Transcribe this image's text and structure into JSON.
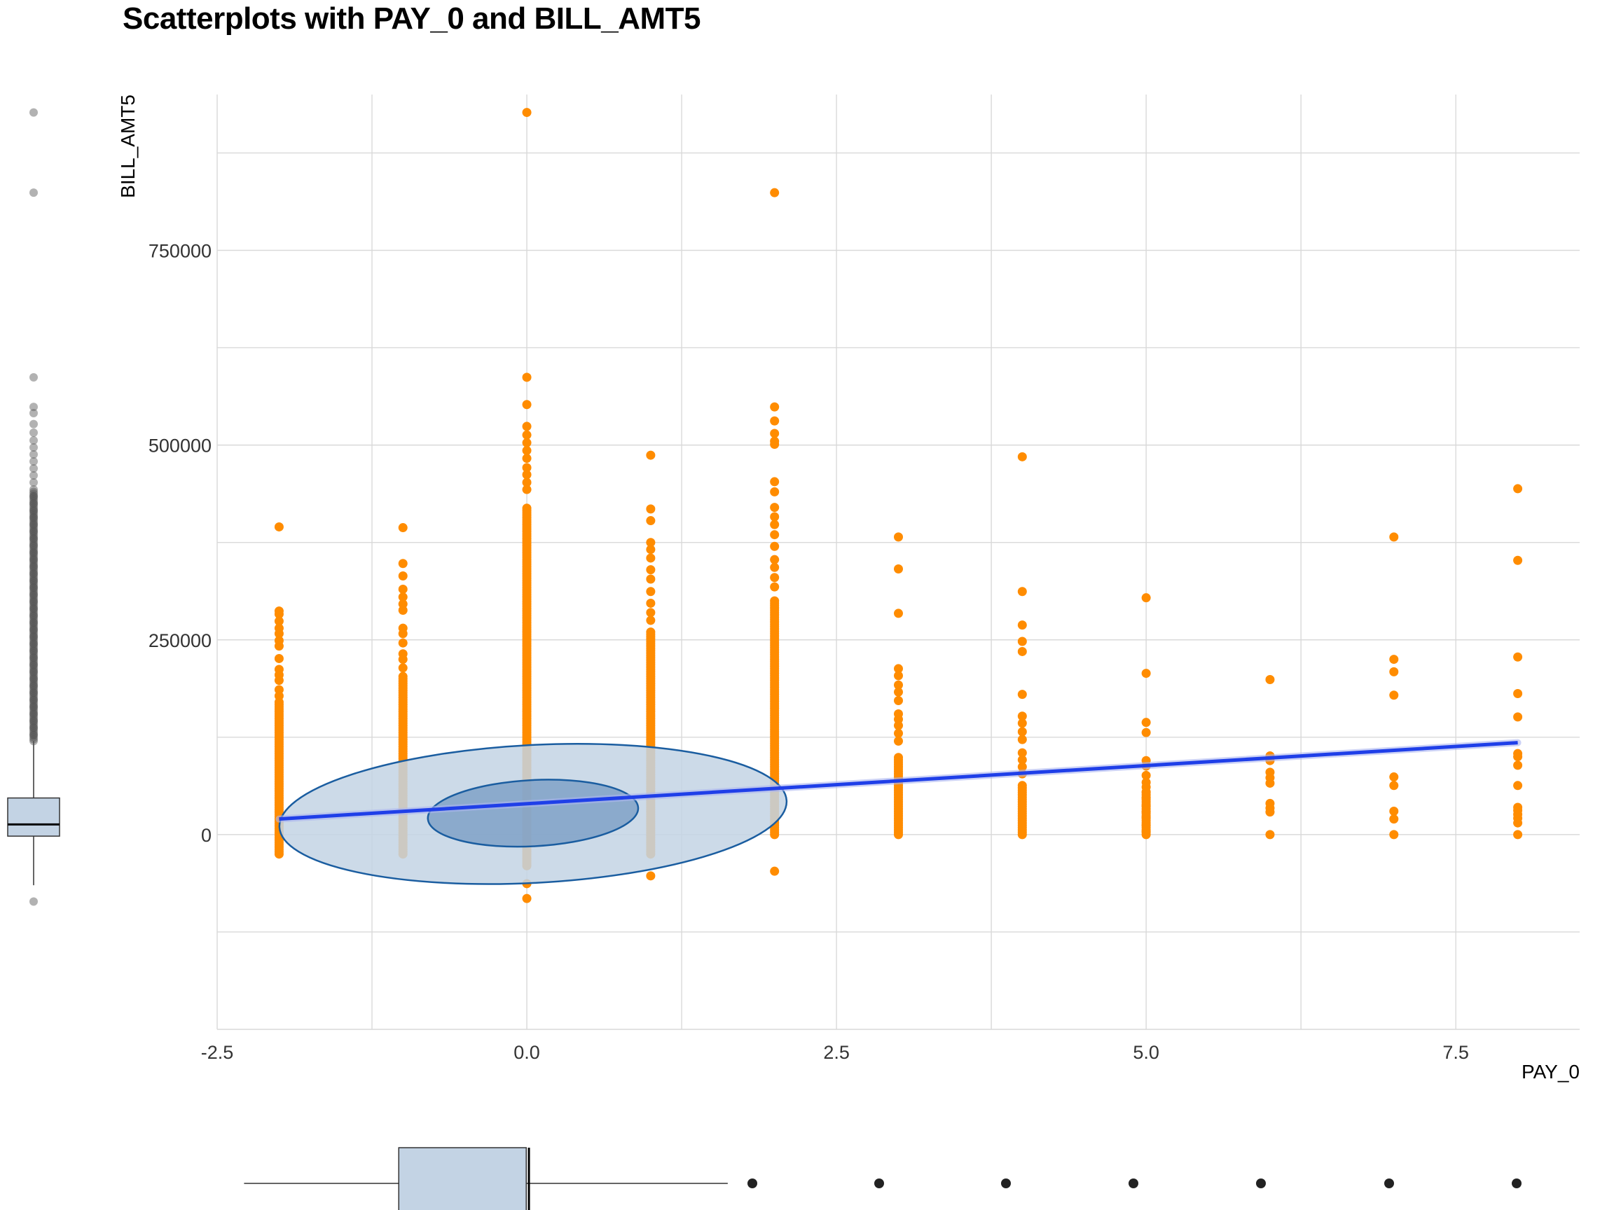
{
  "chart_data": {
    "type": "scatter",
    "title": "Scatterplots with PAY_0 and BILL_AMT5",
    "xlabel": "PAY_0",
    "ylabel": "BILL_AMT5",
    "xlim": [
      -2.5,
      8.5
    ],
    "ylim": [
      -250000,
      950000
    ],
    "x_ticks": [
      {
        "value": -2.5,
        "label": "-2.5"
      },
      {
        "value": 0.0,
        "label": "0.0"
      },
      {
        "value": 2.5,
        "label": "2.5"
      },
      {
        "value": 5.0,
        "label": "5.0"
      },
      {
        "value": 7.5,
        "label": "7.5"
      }
    ],
    "y_ticks": [
      {
        "value": 0,
        "label": "0"
      },
      {
        "value": 250000,
        "label": "250000"
      },
      {
        "value": 500000,
        "label": "500000"
      },
      {
        "value": 750000,
        "label": "750000"
      }
    ],
    "grid": true,
    "point_color": "#ff8c00",
    "columns": [
      {
        "x": -2,
        "dense_range": [
          -25000,
          170000
        ],
        "points": [
          395000,
          287000,
          283000,
          274000,
          265000,
          258000,
          249000,
          242000,
          226000,
          212000,
          205000,
          198000,
          186000,
          178000
        ]
      },
      {
        "x": -1,
        "dense_range": [
          -25000,
          205000
        ],
        "points": [
          394000,
          348000,
          332000,
          315000,
          305000,
          296000,
          288000,
          265000,
          258000,
          246000,
          232000,
          225000,
          214000
        ]
      },
      {
        "x": 0,
        "dense_range": [
          -40000,
          420000
        ],
        "points": [
          927000,
          587000,
          552000,
          524000,
          513000,
          503000,
          493000,
          483000,
          471000,
          462000,
          452000,
          443000,
          -63000,
          -82000
        ]
      },
      {
        "x": 1,
        "dense_range": [
          -25000,
          260000
        ],
        "points": [
          487000,
          418000,
          403000,
          375000,
          366000,
          355000,
          340000,
          328000,
          312000,
          297000,
          285000,
          275000,
          -53000
        ]
      },
      {
        "x": 2,
        "dense_range": [
          0,
          300000
        ],
        "points": [
          824000,
          549000,
          531000,
          515000,
          505000,
          501000,
          453000,
          440000,
          420000,
          408000,
          398000,
          385000,
          370000,
          353000,
          343000,
          330000,
          318000,
          -47000
        ]
      },
      {
        "x": 3,
        "dense_range": [
          0,
          100000
        ],
        "points": [
          382000,
          341000,
          284000,
          213000,
          204000,
          192000,
          183000,
          172000,
          155000,
          148000,
          140000,
          130000,
          120000
        ]
      },
      {
        "x": 4,
        "dense_range": [
          0,
          65000
        ],
        "points": [
          485000,
          312000,
          269000,
          248000,
          235000,
          180000,
          152000,
          143000,
          132000,
          122000,
          105000,
          96000,
          87000,
          78000
        ]
      },
      {
        "x": 5,
        "dense_range": [
          0,
          55000
        ],
        "points": [
          304000,
          207000,
          144000,
          131000,
          95000,
          88000,
          76000,
          67000,
          61000,
          55000,
          47000,
          37000,
          29000,
          22000,
          12000,
          4000
        ]
      },
      {
        "x": 6,
        "dense_range": [
          0,
          0
        ],
        "points": [
          199000,
          101000,
          95000,
          80000,
          73000,
          66000,
          40000,
          34000,
          29000
        ]
      },
      {
        "x": 7,
        "dense_range": [
          0,
          0
        ],
        "points": [
          382000,
          225000,
          209000,
          179000,
          74000,
          63000,
          30000,
          20000
        ]
      },
      {
        "x": 8,
        "dense_range": [
          0,
          0
        ],
        "points": [
          444000,
          352000,
          228000,
          181000,
          151000,
          104000,
          100000,
          89000,
          63000,
          35000,
          31000,
          26000,
          21000,
          15000
        ]
      }
    ],
    "regression_line": {
      "color": "#1f3fe8",
      "x": [
        -2,
        8
      ],
      "y": [
        20000,
        118000
      ]
    },
    "ellipses": [
      {
        "level": "outer",
        "fill": "#c3d3e4",
        "stroke": "#1a5da0",
        "x_range": [
          -2,
          2.1
        ],
        "y_range": [
          -62000,
          115000
        ]
      },
      {
        "level": "inner",
        "fill": "#7b9dc4",
        "stroke": "#1a5da0",
        "x_range": [
          -0.8,
          0.9
        ],
        "y_range": [
          -15000,
          70000
        ]
      }
    ],
    "y_marginal_boxplot": {
      "fill": "#c3d3e4",
      "stroke": "#333333",
      "whisker_low": -65000,
      "q1": -2000,
      "median": 13000,
      "q3": 47000,
      "whisker_high": 120000,
      "outliers": [
        927000,
        824000,
        587000,
        549000,
        541000,
        527000,
        516000,
        506000,
        497000,
        488000,
        479000,
        470000,
        461000,
        452000,
        443000,
        434000,
        425000,
        416000,
        407000,
        398000,
        389000,
        380000,
        371000,
        362000,
        353000,
        344000,
        335000,
        326000,
        317000,
        308000,
        299000,
        290000,
        281000,
        272000,
        263000,
        254000,
        245000,
        236000,
        227000,
        218000,
        209000,
        200000,
        191000,
        182000,
        173000,
        164000,
        155000,
        146000,
        137000,
        128000,
        -86000
      ]
    },
    "x_marginal_boxplot": {
      "fill": "#c3d3e4",
      "stroke": "#333333",
      "whisker_low": -2,
      "q1": -1,
      "median": 0,
      "q3": 0,
      "whisker_high": 1,
      "outliers": [
        2,
        3,
        4,
        5,
        6,
        7,
        8
      ]
    }
  }
}
